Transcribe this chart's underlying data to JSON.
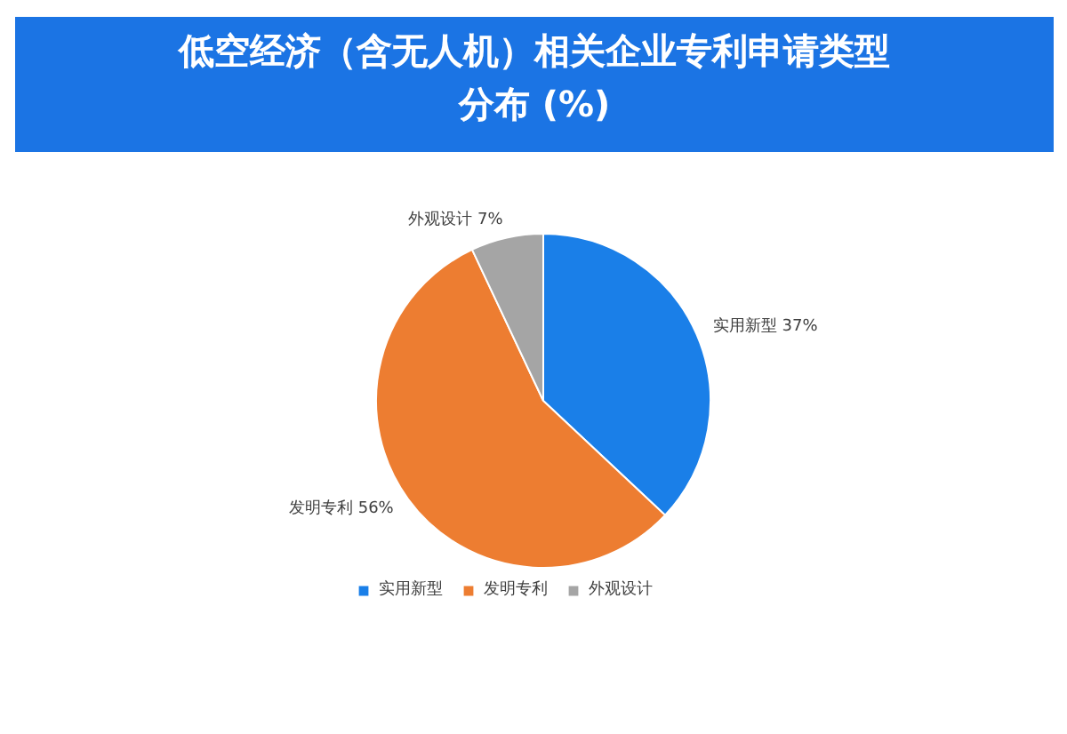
{
  "chart_data": {
    "type": "pie",
    "title": "低空经济（含无人机）相关企业专利申请类型分布 (%)",
    "categories": [
      "实用新型",
      "发明专利",
      "外观设计"
    ],
    "values": [
      37,
      56,
      7
    ],
    "colors": [
      "#1a7fe8",
      "#ed7d31",
      "#a5a5a5"
    ],
    "value_labels": [
      "实用新型 37%",
      "发明专利 56%",
      "外观设计 7%"
    ],
    "legend": "bottom"
  }
}
